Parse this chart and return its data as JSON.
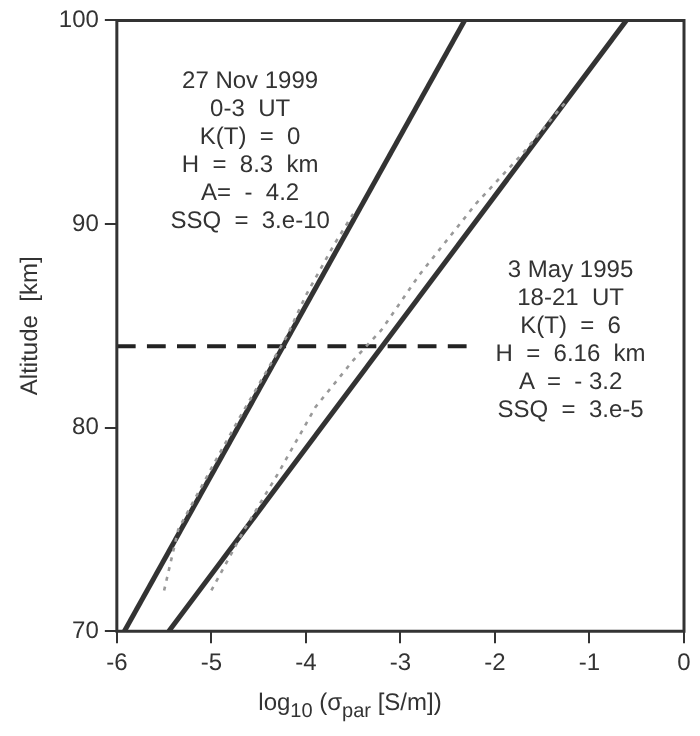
{
  "chart_data": {
    "type": "line",
    "xlabel": "log$_{10}$ (σ$_{par}$  [S/m])",
    "ylabel": "Altitude  [km]",
    "xlim": [
      -6,
      0
    ],
    "ylim": [
      70,
      100
    ],
    "xticks": [
      -6,
      -5,
      -4,
      -3,
      -2,
      -1,
      0
    ],
    "yticks": [
      70,
      80,
      90,
      100
    ],
    "grid": false,
    "legend": false,
    "marker": "none",
    "series": [
      {
        "color": "#999999",
        "line_style": "dotted",
        "x": [
          -5.5,
          -5.35,
          -5.0,
          -4.7,
          -4.45,
          -4.2,
          -4.0,
          -3.7,
          -3.5
        ],
        "values": [
          72,
          75,
          78,
          80.5,
          82.5,
          84.5,
          86.5,
          89,
          90.5
        ]
      },
      {
        "color": "#999999",
        "line_style": "dotted",
        "x": [
          -5.0,
          -4.65,
          -4.3,
          -3.9,
          -3.5,
          -3.2,
          -2.8,
          -2.2,
          -1.7,
          -1.25
        ],
        "values": [
          72,
          75,
          77.7,
          81,
          83.3,
          84.8,
          87.5,
          91,
          93.5,
          96
        ]
      },
      {
        "color": "#333333",
        "line_style": "solid",
        "x": [
          -5.92,
          -2.32
        ],
        "values": [
          70,
          100
        ]
      },
      {
        "color": "#333333",
        "line_style": "solid",
        "x": [
          -5.45,
          -0.61
        ],
        "values": [
          70,
          100
        ]
      },
      {
        "color": "#222222",
        "line_style": "dashed",
        "x": [
          -6,
          -2.3
        ],
        "values": [
          84,
          84
        ]
      }
    ],
    "annotations": [
      "27 Nov 1999\n0-3  UT\nK(T)  =  0\nH  =  8.3  km\nA=  -  4.2\nSSQ  =  3.e-10",
      "3 May 1995\n18-21  UT\nK(T)  =  6\nH  =  6.16  km\nA  =  - 3.2\nSSQ  =  3.e-5"
    ]
  }
}
